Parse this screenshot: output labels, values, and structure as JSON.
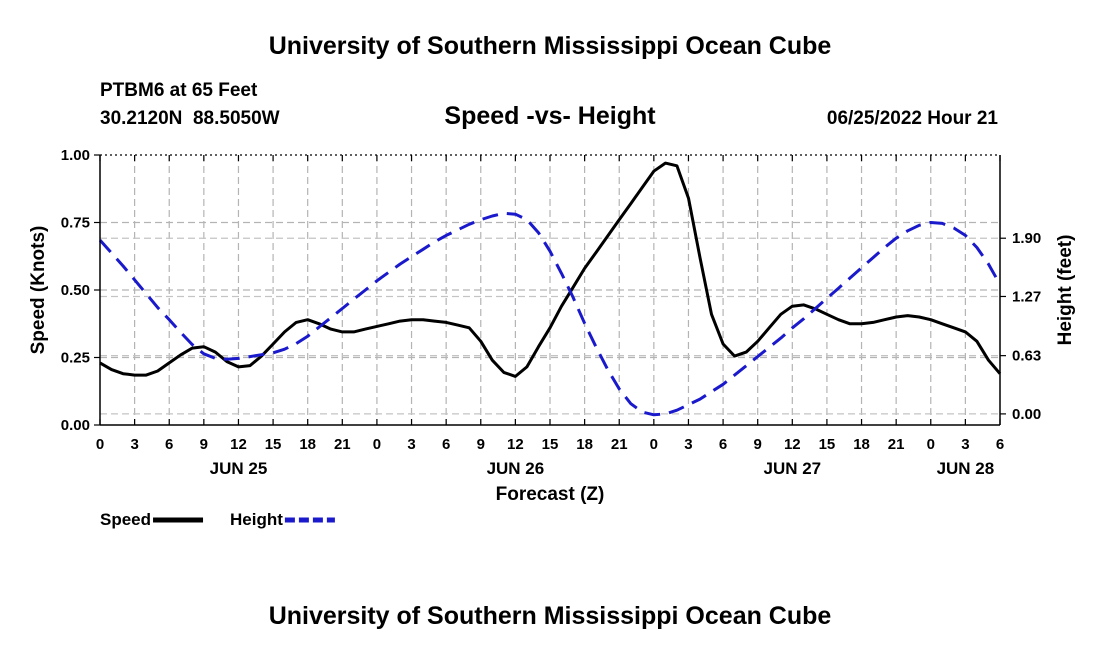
{
  "chart_data": {
    "type": "line",
    "title": "University of Southern Mississippi Ocean Cube",
    "footer_title": "University of Southern Mississippi Ocean Cube",
    "subtitle": "Speed -vs- Height",
    "station": "PTBM6 at 65 Feet",
    "coordinates": "30.2120N  88.5050W",
    "datetime": "06/25/2022 Hour 21",
    "xlabel": "Forecast (Z)",
    "ylabel_left": "Speed (Knots)",
    "ylabel_right": "Height (feet)",
    "x_unit": "hours since 06/25/2022 00Z",
    "xlim": [
      0,
      78
    ],
    "ylim_left": [
      0,
      1.0
    ],
    "ylim_right": [
      -0.12,
      2.8
    ],
    "grid": true,
    "x_tick_labels": [
      "0",
      "3",
      "6",
      "9",
      "12",
      "15",
      "18",
      "21",
      "0",
      "3",
      "6",
      "9",
      "12",
      "15",
      "18",
      "21",
      "0",
      "3",
      "6",
      "9",
      "12",
      "15",
      "18",
      "21",
      "0",
      "3",
      "6"
    ],
    "day_labels": [
      {
        "label": "JUN 25",
        "x": 12
      },
      {
        "label": "JUN 26",
        "x": 36
      },
      {
        "label": "JUN 27",
        "x": 60
      },
      {
        "label": "JUN 28",
        "x": 75
      }
    ],
    "left_ticks": [
      {
        "value": 0.0,
        "label": "0.00"
      },
      {
        "value": 0.25,
        "label": "0.25"
      },
      {
        "value": 0.5,
        "label": "0.50"
      },
      {
        "value": 0.75,
        "label": "0.75"
      },
      {
        "value": 1.0,
        "label": "1.00"
      }
    ],
    "right_ticks": [
      {
        "value": 0.0,
        "label": "0.00"
      },
      {
        "value": 0.63,
        "label": "0.63"
      },
      {
        "value": 1.27,
        "label": "1.27"
      },
      {
        "value": 1.9,
        "label": "1.90"
      }
    ],
    "series": [
      {
        "name": "Speed",
        "axis": "left",
        "color": "#000000",
        "style": "solid",
        "points": [
          [
            0,
            0.23
          ],
          [
            1,
            0.205
          ],
          [
            2,
            0.19
          ],
          [
            3,
            0.185
          ],
          [
            4,
            0.185
          ],
          [
            5,
            0.2
          ],
          [
            6,
            0.23
          ],
          [
            7,
            0.26
          ],
          [
            8,
            0.285
          ],
          [
            9,
            0.29
          ],
          [
            10,
            0.27
          ],
          [
            11,
            0.235
          ],
          [
            12,
            0.215
          ],
          [
            13,
            0.22
          ],
          [
            14,
            0.255
          ],
          [
            15,
            0.3
          ],
          [
            16,
            0.345
          ],
          [
            17,
            0.38
          ],
          [
            18,
            0.39
          ],
          [
            19,
            0.375
          ],
          [
            20,
            0.355
          ],
          [
            21,
            0.345
          ],
          [
            22,
            0.345
          ],
          [
            23,
            0.355
          ],
          [
            24,
            0.365
          ],
          [
            25,
            0.375
          ],
          [
            26,
            0.385
          ],
          [
            27,
            0.39
          ],
          [
            28,
            0.39
          ],
          [
            29,
            0.385
          ],
          [
            30,
            0.38
          ],
          [
            31,
            0.37
          ],
          [
            32,
            0.36
          ],
          [
            33,
            0.31
          ],
          [
            34,
            0.24
          ],
          [
            35,
            0.195
          ],
          [
            36,
            0.18
          ],
          [
            37,
            0.215
          ],
          [
            38,
            0.29
          ],
          [
            39,
            0.36
          ],
          [
            40,
            0.44
          ],
          [
            41,
            0.51
          ],
          [
            42,
            0.58
          ],
          [
            43,
            0.64
          ],
          [
            44,
            0.7
          ],
          [
            45,
            0.76
          ],
          [
            46,
            0.82
          ],
          [
            47,
            0.88
          ],
          [
            48,
            0.94
          ],
          [
            49,
            0.97
          ],
          [
            50,
            0.96
          ],
          [
            51,
            0.84
          ],
          [
            52,
            0.62
          ],
          [
            53,
            0.41
          ],
          [
            54,
            0.3
          ],
          [
            55,
            0.255
          ],
          [
            56,
            0.27
          ],
          [
            57,
            0.31
          ],
          [
            58,
            0.36
          ],
          [
            59,
            0.41
          ],
          [
            60,
            0.44
          ],
          [
            61,
            0.445
          ],
          [
            62,
            0.43
          ],
          [
            63,
            0.41
          ],
          [
            64,
            0.39
          ],
          [
            65,
            0.375
          ],
          [
            66,
            0.375
          ],
          [
            67,
            0.38
          ],
          [
            68,
            0.39
          ],
          [
            69,
            0.4
          ],
          [
            70,
            0.405
          ],
          [
            71,
            0.4
          ],
          [
            72,
            0.39
          ],
          [
            73,
            0.375
          ],
          [
            74,
            0.36
          ],
          [
            75,
            0.345
          ],
          [
            76,
            0.31
          ],
          [
            77,
            0.24
          ],
          [
            78,
            0.19
          ]
        ]
      },
      {
        "name": "Height",
        "axis": "right",
        "color": "#1a1acc",
        "style": "dashed",
        "points": [
          [
            0,
            1.88
          ],
          [
            1,
            1.74
          ],
          [
            2,
            1.6
          ],
          [
            3,
            1.45
          ],
          [
            4,
            1.3
          ],
          [
            5,
            1.15
          ],
          [
            6,
            1.02
          ],
          [
            7,
            0.88
          ],
          [
            8,
            0.75
          ],
          [
            9,
            0.65
          ],
          [
            10,
            0.6
          ],
          [
            11,
            0.59
          ],
          [
            12,
            0.6
          ],
          [
            13,
            0.62
          ],
          [
            14,
            0.64
          ],
          [
            15,
            0.66
          ],
          [
            16,
            0.7
          ],
          [
            17,
            0.76
          ],
          [
            18,
            0.84
          ],
          [
            19,
            0.94
          ],
          [
            20,
            1.04
          ],
          [
            21,
            1.14
          ],
          [
            22,
            1.24
          ],
          [
            23,
            1.34
          ],
          [
            24,
            1.44
          ],
          [
            25,
            1.53
          ],
          [
            26,
            1.62
          ],
          [
            27,
            1.7
          ],
          [
            28,
            1.78
          ],
          [
            29,
            1.86
          ],
          [
            30,
            1.93
          ],
          [
            31,
            1.99
          ],
          [
            32,
            2.05
          ],
          [
            33,
            2.1
          ],
          [
            34,
            2.14
          ],
          [
            35,
            2.17
          ],
          [
            36,
            2.16
          ],
          [
            37,
            2.1
          ],
          [
            38,
            1.96
          ],
          [
            39,
            1.76
          ],
          [
            40,
            1.52
          ],
          [
            41,
            1.26
          ],
          [
            42,
            0.98
          ],
          [
            43,
            0.72
          ],
          [
            44,
            0.48
          ],
          [
            45,
            0.27
          ],
          [
            46,
            0.11
          ],
          [
            47,
            0.02
          ],
          [
            48,
            -0.01
          ],
          [
            49,
            0.0
          ],
          [
            50,
            0.04
          ],
          [
            51,
            0.1
          ],
          [
            52,
            0.16
          ],
          [
            53,
            0.24
          ],
          [
            54,
            0.32
          ],
          [
            55,
            0.42
          ],
          [
            56,
            0.52
          ],
          [
            57,
            0.62
          ],
          [
            58,
            0.72
          ],
          [
            59,
            0.82
          ],
          [
            60,
            0.93
          ],
          [
            61,
            1.03
          ],
          [
            62,
            1.14
          ],
          [
            63,
            1.25
          ],
          [
            64,
            1.36
          ],
          [
            65,
            1.47
          ],
          [
            66,
            1.58
          ],
          [
            67,
            1.69
          ],
          [
            68,
            1.8
          ],
          [
            69,
            1.9
          ],
          [
            70,
            1.98
          ],
          [
            71,
            2.04
          ],
          [
            72,
            2.07
          ],
          [
            73,
            2.06
          ],
          [
            74,
            2.01
          ],
          [
            75,
            1.93
          ],
          [
            76,
            1.8
          ],
          [
            77,
            1.62
          ],
          [
            78,
            1.4
          ]
        ]
      }
    ]
  },
  "legend": [
    {
      "label": "Speed",
      "color": "#000000",
      "style": "solid"
    },
    {
      "label": "Height",
      "color": "#1a1acc",
      "style": "dashed"
    }
  ]
}
